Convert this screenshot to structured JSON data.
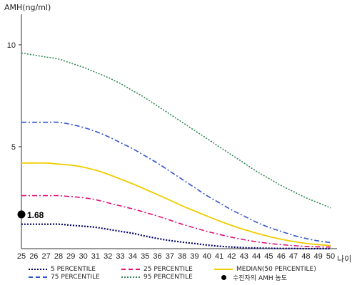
{
  "chart_data": {
    "type": "line",
    "ylabel": "AMH(ng/ml)",
    "xlabel": "나이",
    "ylim": [
      0,
      11.5
    ],
    "yticks": [
      5,
      10
    ],
    "x": [
      25,
      26,
      27,
      28,
      29,
      30,
      31,
      32,
      33,
      34,
      35,
      36,
      37,
      38,
      39,
      40,
      41,
      42,
      43,
      44,
      45,
      46,
      47,
      48,
      49,
      50
    ],
    "series": [
      {
        "name": "5 PERCENTILE",
        "color": "#000066",
        "dash": "2,2",
        "width": 2.2,
        "values": [
          1.2,
          1.2,
          1.2,
          1.2,
          1.15,
          1.1,
          1.05,
          0.95,
          0.85,
          0.75,
          0.62,
          0.5,
          0.4,
          0.32,
          0.25,
          0.18,
          0.12,
          0.08,
          0.05,
          0.03,
          0.02,
          0.01,
          0.01,
          0.0,
          0.0,
          0.0
        ]
      },
      {
        "name": "75 PERCENTILE",
        "color": "#3355cc",
        "dash": "7,3,2,3",
        "width": 1.6,
        "values": [
          6.2,
          6.2,
          6.2,
          6.2,
          6.1,
          5.95,
          5.75,
          5.5,
          5.2,
          4.9,
          4.55,
          4.2,
          3.8,
          3.4,
          3.0,
          2.6,
          2.25,
          1.9,
          1.6,
          1.3,
          1.05,
          0.85,
          0.65,
          0.5,
          0.38,
          0.3
        ]
      },
      {
        "name": "25 PERCENTILE",
        "color": "#dd1177",
        "dash": "7,3,2,3",
        "width": 1.6,
        "values": [
          2.6,
          2.6,
          2.6,
          2.6,
          2.55,
          2.5,
          2.4,
          2.25,
          2.1,
          1.95,
          1.78,
          1.6,
          1.4,
          1.2,
          1.02,
          0.85,
          0.7,
          0.56,
          0.44,
          0.34,
          0.26,
          0.2,
          0.15,
          0.11,
          0.09,
          0.08
        ]
      },
      {
        "name": "95 PERCENTILE",
        "color": "#338855",
        "dash": "2,2",
        "width": 1.6,
        "values": [
          9.6,
          9.5,
          9.4,
          9.3,
          9.1,
          8.9,
          8.65,
          8.4,
          8.1,
          7.75,
          7.4,
          7.0,
          6.6,
          6.2,
          5.8,
          5.4,
          5.0,
          4.6,
          4.2,
          3.8,
          3.45,
          3.1,
          2.8,
          2.5,
          2.25,
          2.0
        ]
      },
      {
        "name": "MEDIAN(50 PERCENTILE)",
        "color": "#f0cc00",
        "dash": "",
        "width": 1.8,
        "values": [
          4.2,
          4.2,
          4.2,
          4.15,
          4.1,
          4.0,
          3.85,
          3.65,
          3.42,
          3.18,
          2.92,
          2.65,
          2.38,
          2.1,
          1.85,
          1.6,
          1.36,
          1.14,
          0.94,
          0.76,
          0.6,
          0.46,
          0.35,
          0.26,
          0.2,
          0.15
        ]
      }
    ],
    "marker": {
      "name": "수진자의 AMH 농도",
      "x": 25,
      "y": 1.68,
      "label": "1.68"
    }
  }
}
